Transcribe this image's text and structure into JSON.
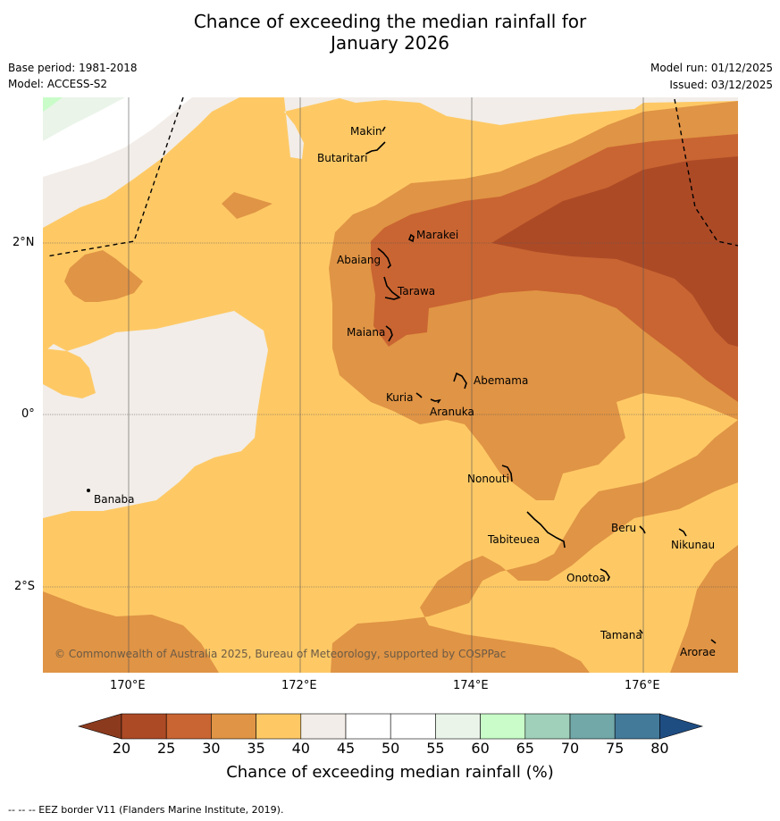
{
  "title_line1": "Chance of exceeding the median rainfall for",
  "title_line2": "January 2026",
  "base_period": "Base period: 1981-2018",
  "model": "Model: ACCESS-S2",
  "model_run": "Model run: 01/12/2025",
  "issued": "Issued: 03/12/2025",
  "lat_labels": [
    "2°N",
    "0°",
    "2°S"
  ],
  "lon_labels": [
    "170°E",
    "172°E",
    "174°E",
    "176°E"
  ],
  "places": [
    "Makin",
    "Butaritari",
    "Marakei",
    "Abaiang",
    "Tarawa",
    "Maiana",
    "Abemama",
    "Kuria",
    "Aranuka",
    "Nonouti",
    "Banaba",
    "Beru",
    "Nikunau",
    "Tabiteuea",
    "Onotoa",
    "Tamana",
    "Arorae"
  ],
  "copyright": "© Commonwealth of Australia 2025, Bureau of Meteorology, supported by COSPPac",
  "colorbar": {
    "ticks": [
      "20",
      "25",
      "30",
      "35",
      "40",
      "45",
      "50",
      "55",
      "60",
      "65",
      "70",
      "75",
      "80"
    ],
    "colors": [
      "#ad4a26",
      "#c96532",
      "#e09445",
      "#fec965",
      "#f2ede8",
      "#ffffff",
      "#ffffff",
      "#eaf4e9",
      "#c9fcc8",
      "#a0d0ba",
      "#72a8a8",
      "#437a9a"
    ],
    "under_color": "#8b3a1e",
    "over_color": "#1e4d82",
    "label": "Chance of exceeding median rainfall (%)"
  },
  "footnote": "--  --  -- EEZ border V11 (Flanders Marine Institute, 2019)."
}
